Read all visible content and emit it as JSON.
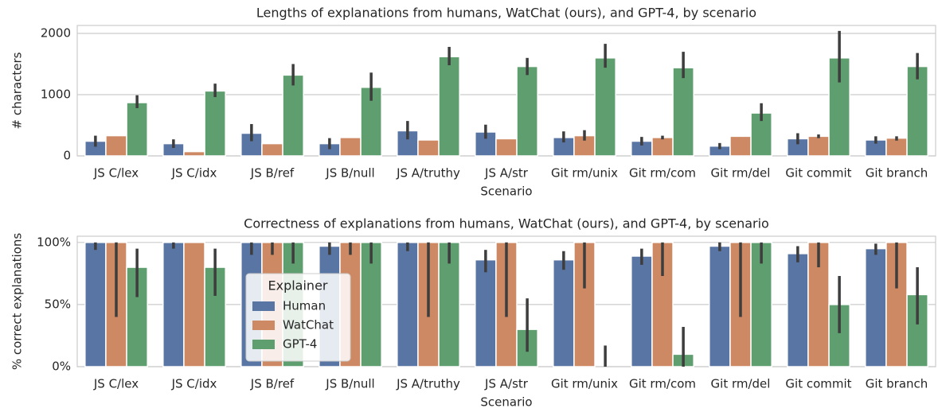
{
  "chart_data": [
    {
      "type": "bar",
      "title": "Lengths of explanations from humans, WatChat (ours), and GPT-4, by scenario",
      "x_label": "Scenario",
      "y_label": "# characters",
      "categories": [
        "JS C/lex",
        "JS C/idx",
        "JS B/ref",
        "JS B/null",
        "JS A/truthy",
        "JS A/str",
        "Git rm/unix",
        "Git rm/com",
        "Git rm/del",
        "Git commit",
        "Git branch"
      ],
      "series": [
        {
          "name": "Human",
          "color": "#5875a4",
          "values": [
            240,
            200,
            370,
            200,
            410,
            390,
            300,
            240,
            160,
            280,
            260
          ],
          "ci_low": [
            150,
            130,
            240,
            110,
            270,
            280,
            220,
            170,
            110,
            190,
            200
          ],
          "ci_high": [
            330,
            270,
            520,
            290,
            570,
            510,
            400,
            310,
            210,
            370,
            320
          ]
        },
        {
          "name": "WatChat",
          "color": "#cc8963",
          "values": [
            330,
            70,
            200,
            300,
            260,
            280,
            330,
            300,
            320,
            320,
            290
          ],
          "ci_low": [
            null,
            null,
            null,
            null,
            null,
            null,
            250,
            270,
            null,
            290,
            250
          ],
          "ci_high": [
            null,
            null,
            null,
            null,
            null,
            null,
            420,
            330,
            null,
            350,
            320
          ]
        },
        {
          "name": "GPT-4",
          "color": "#5f9e6e",
          "values": [
            870,
            1060,
            1320,
            1120,
            1620,
            1460,
            1600,
            1440,
            700,
            1600,
            1460
          ],
          "ci_low": [
            780,
            960,
            1150,
            900,
            1480,
            1320,
            1440,
            1270,
            570,
            1200,
            1250
          ],
          "ci_high": [
            990,
            1180,
            1500,
            1360,
            1780,
            1600,
            1830,
            1700,
            860,
            2040,
            1680
          ]
        }
      ],
      "ylim": [
        0,
        2130
      ],
      "yticks": [
        0,
        1000,
        2000
      ],
      "grid": true
    },
    {
      "type": "bar",
      "title": "Correctness of explanations from humans, WatChat (ours), and GPT-4, by scenario",
      "x_label": "Scenario",
      "y_label": "% correct explanations",
      "categories": [
        "JS C/lex",
        "JS C/idx",
        "JS B/ref",
        "JS B/null",
        "JS A/truthy",
        "JS A/str",
        "Git rm/unix",
        "Git rm/com",
        "Git rm/del",
        "Git commit",
        "Git branch"
      ],
      "series": [
        {
          "name": "Human",
          "color": "#5875a4",
          "values": [
            100,
            100,
            100,
            97,
            100,
            86,
            86,
            89,
            97,
            91,
            95
          ],
          "ci_low": [
            94,
            95,
            90,
            90,
            93,
            76,
            78,
            82,
            93,
            84,
            90
          ],
          "ci_high": [
            100,
            100,
            100,
            100,
            100,
            94,
            93,
            95,
            100,
            97,
            99
          ]
        },
        {
          "name": "WatChat",
          "color": "#cc8963",
          "values": [
            100,
            100,
            100,
            100,
            100,
            100,
            100,
            100,
            100,
            100,
            100
          ],
          "ci_low": [
            40,
            null,
            90,
            90,
            40,
            40,
            63,
            73,
            40,
            80,
            63
          ],
          "ci_high": [
            100,
            null,
            100,
            100,
            100,
            100,
            100,
            100,
            100,
            100,
            100
          ]
        },
        {
          "name": "GPT-4",
          "color": "#5f9e6e",
          "values": [
            80,
            80,
            100,
            100,
            100,
            30,
            0,
            10,
            100,
            50,
            58
          ],
          "ci_low": [
            56,
            57,
            83,
            83,
            83,
            12,
            0,
            0,
            83,
            27,
            34
          ],
          "ci_high": [
            95,
            95,
            100,
            100,
            100,
            55,
            17,
            32,
            100,
            73,
            80
          ]
        }
      ],
      "ylim": [
        0,
        105
      ],
      "yticks": [
        {
          "value": 0,
          "label": "0%"
        },
        {
          "value": 50,
          "label": "50%"
        },
        {
          "value": 100,
          "label": "100%"
        }
      ],
      "grid": true,
      "legend": {
        "title": "Explainer"
      }
    }
  ]
}
